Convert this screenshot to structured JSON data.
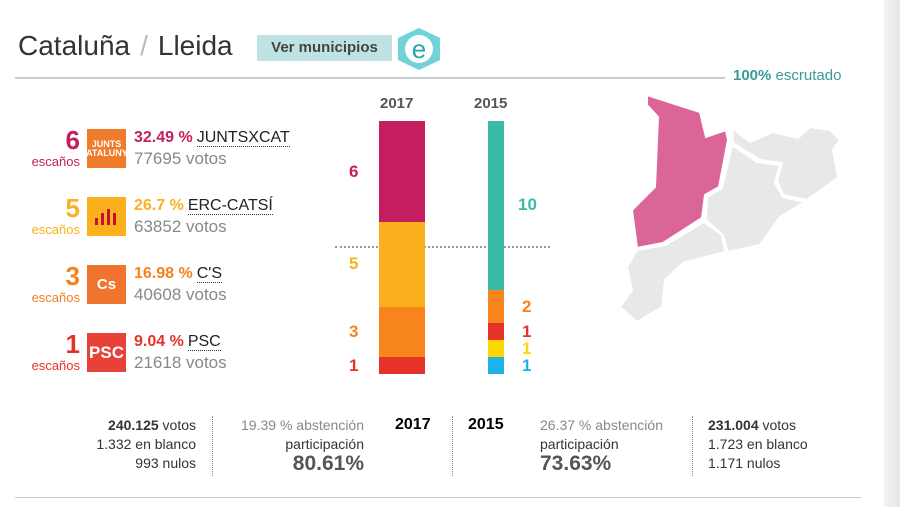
{
  "header": {
    "region": "Cataluña",
    "separator": "/",
    "province": "Lleida",
    "button": "Ver municipios",
    "logo_letter": "e",
    "scrutiny_pct": "100%",
    "scrutiny_label": "escrutado"
  },
  "parties": [
    {
      "seats": "6",
      "seats_label": "escaños",
      "pct": "32.49 %",
      "name": "JUNTSXCAT",
      "votes": "77695 votos",
      "logo_text": "JUNTS CATALUNYA",
      "color": "#c41e5e",
      "logo_color": "#f07b2a"
    },
    {
      "seats": "5",
      "seats_label": "escaños",
      "pct": "26.7 %",
      "name": "ERC-CATSÍ",
      "votes": "63852 votos",
      "logo_text": "",
      "color": "#fbb01d",
      "logo_color": "#fbb01d"
    },
    {
      "seats": "3",
      "seats_label": "escaños",
      "pct": "16.98 %",
      "name": "C'S",
      "votes": "40608 votos",
      "logo_text": "Cs",
      "color": "#f58220",
      "logo_color": "#f0742e"
    },
    {
      "seats": "1",
      "seats_label": "escaños",
      "pct": "9.04 %",
      "name": "PSC",
      "votes": "21618 votos",
      "logo_text": "PSC",
      "color": "#e63329",
      "logo_color": "#e84137"
    }
  ],
  "seat_chart": {
    "total_seats": 15,
    "y2017": {
      "label": "2017",
      "segments": [
        {
          "seats": 6,
          "label": "6",
          "color": "#c41e5e"
        },
        {
          "seats": 5,
          "label": "5",
          "color": "#fbb01d"
        },
        {
          "seats": 3,
          "label": "3",
          "color": "#f7841d"
        },
        {
          "seats": 1,
          "label": "1",
          "color": "#e63329"
        }
      ]
    },
    "y2015": {
      "label": "2015",
      "segments": [
        {
          "seats": 10,
          "label": "10",
          "color": "#3cb9a9"
        },
        {
          "seats": 2,
          "label": "2",
          "color": "#f7841d"
        },
        {
          "seats": 1,
          "label": "1",
          "color": "#e63329"
        },
        {
          "seats": 1,
          "label": "1",
          "color": "#ffd600"
        },
        {
          "seats": 1,
          "label": "1",
          "color": "#1fb2e6"
        }
      ]
    }
  },
  "footer": {
    "y2017": {
      "votes": "240.125",
      "votes_label": "votos",
      "blank": "1.332 en blanco",
      "null": "993 nulos",
      "abst_pct": "19.39 %",
      "abst_label": "abstención",
      "part_label": "participación",
      "part": "80.61%",
      "year": "2017"
    },
    "y2015": {
      "votes": "231.004",
      "votes_label": "votos",
      "blank": "1.723 en blanco",
      "null": "1.171 nulos",
      "abst_pct": "26.37 %",
      "abst_label": "abstención",
      "part_label": "participación",
      "part": "73.63%",
      "year": "2015"
    }
  },
  "map": {
    "highlight_color": "#dc6598",
    "other_color": "#e8e8e8",
    "highlighted": "Lleida"
  }
}
